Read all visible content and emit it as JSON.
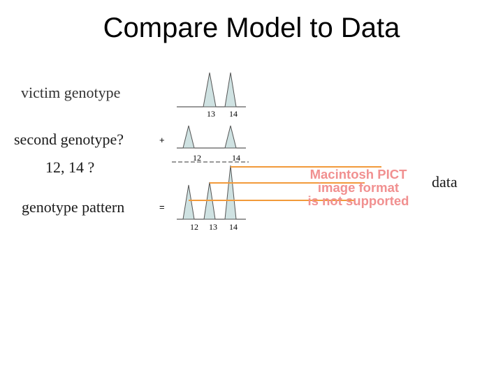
{
  "title": "Compare Model to Data",
  "labels": {
    "victim": "victim genotype",
    "second": "second genotype?",
    "second_value": "12, 14 ?",
    "pattern": "genotype pattern",
    "data": "data"
  },
  "operators": {
    "plus": "+",
    "equals": "="
  },
  "victim_peaks": [
    "13",
    "14"
  ],
  "second_peaks": [
    "12",
    "14"
  ],
  "pattern_peaks": [
    "12",
    "13",
    "14"
  ],
  "placeholder_image": {
    "line1": "Macintosh PICT",
    "line2": "image format",
    "line3": "is not supported"
  },
  "colors": {
    "peak_fill": "#cfe2e2",
    "connector": "#f29a3a",
    "placeholder_text": "#f19090"
  }
}
